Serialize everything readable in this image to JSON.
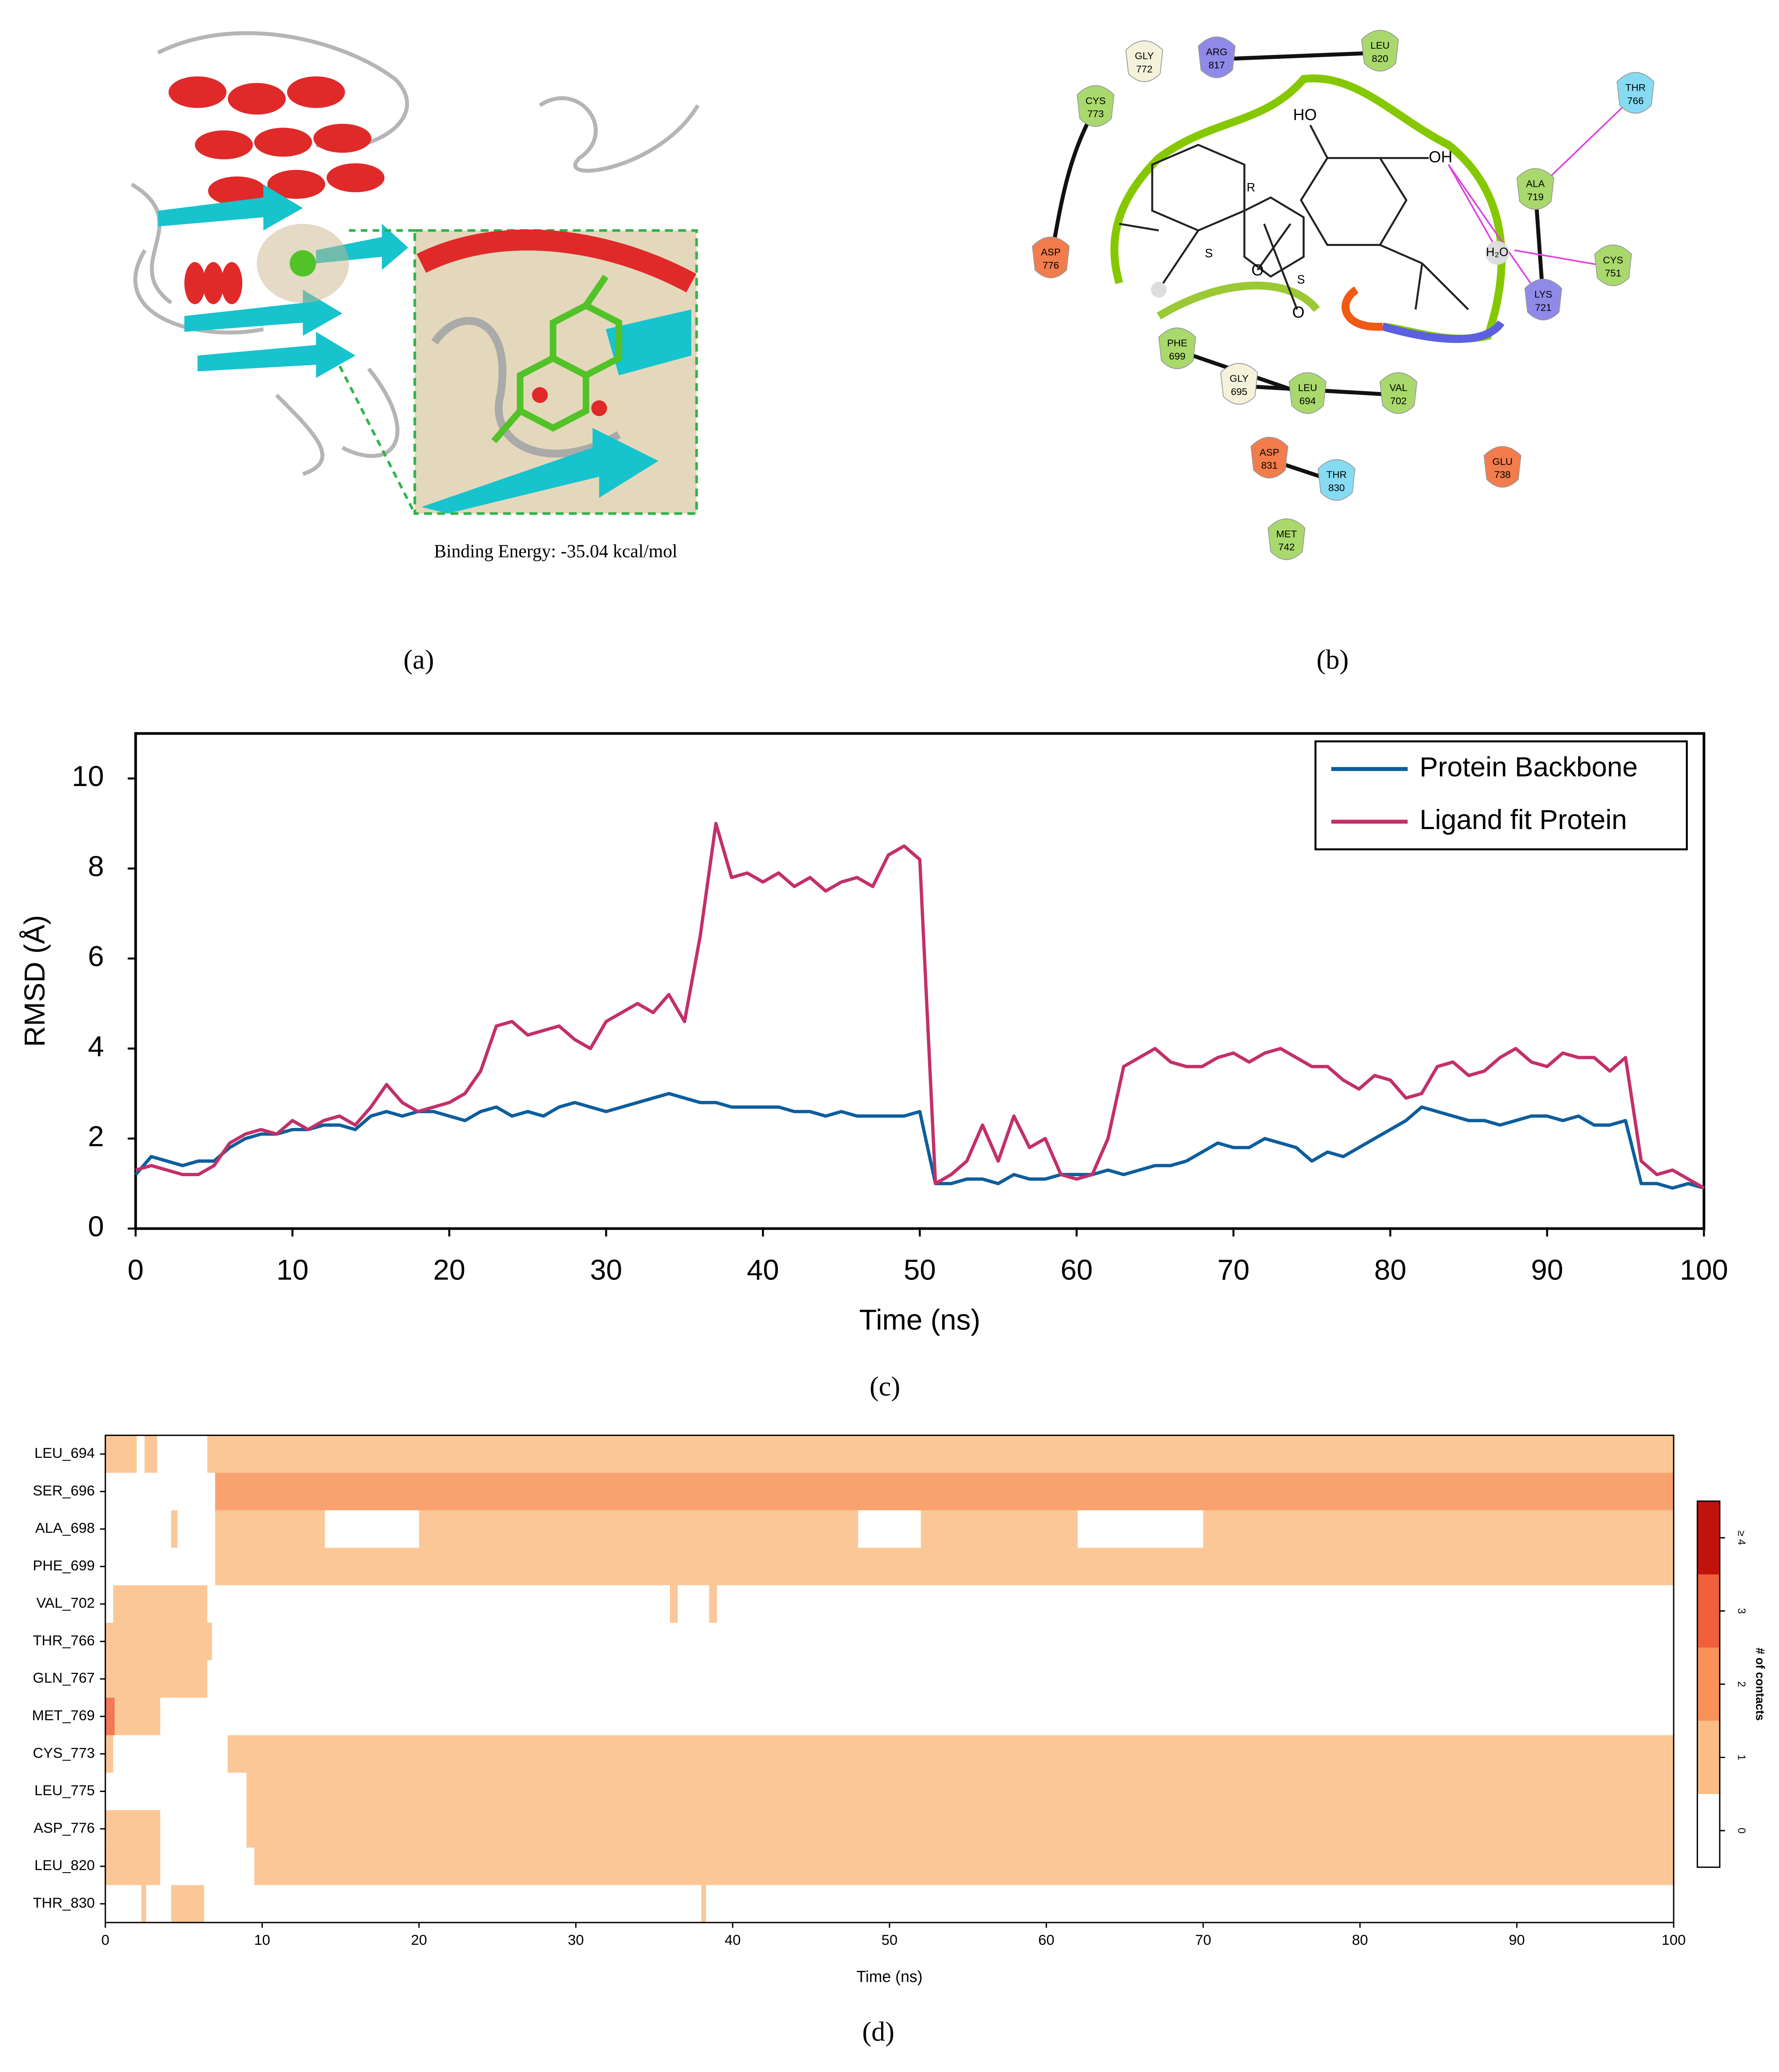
{
  "panels": {
    "a": {
      "label": "(a)",
      "caption": "Binding Energy: -35.04 kcal/mol"
    },
    "b": {
      "label": "(b)",
      "residues": [
        {
          "name": "GLY",
          "number": "772",
          "color": "#f5f2dc"
        },
        {
          "name": "ARG",
          "number": "817",
          "color": "#8f8ae8"
        },
        {
          "name": "LEU",
          "number": "820",
          "color": "#a9d96c"
        },
        {
          "name": "CYS",
          "number": "773",
          "color": "#a9d96c"
        },
        {
          "name": "THR",
          "number": "766",
          "color": "#86dbf2"
        },
        {
          "name": "ALA",
          "number": "719",
          "color": "#a9d96c"
        },
        {
          "name": "ASP",
          "number": "776",
          "color": "#f27c4c"
        },
        {
          "name": "CYS",
          "number": "751",
          "color": "#a9d96c"
        },
        {
          "name": "LYS",
          "number": "721",
          "color": "#8f8ae8"
        },
        {
          "name": "PHE",
          "number": "699",
          "color": "#a9d96c"
        },
        {
          "name": "GLY",
          "number": "695",
          "color": "#f5f2dc"
        },
        {
          "name": "LEU",
          "number": "694",
          "color": "#a9d96c"
        },
        {
          "name": "VAL",
          "number": "702",
          "color": "#a9d96c"
        },
        {
          "name": "ASP",
          "number": "831",
          "color": "#f27c4c"
        },
        {
          "name": "THR",
          "number": "830",
          "color": "#86dbf2"
        },
        {
          "name": "GLU",
          "number": "738",
          "color": "#f27c4c"
        },
        {
          "name": "MET",
          "number": "742",
          "color": "#a9d96c"
        }
      ],
      "ligand_labels": [
        "HO",
        "OH",
        "R",
        "S",
        "S",
        "O",
        "O",
        "H₂O"
      ]
    },
    "c": {
      "label": "(c)"
    },
    "d": {
      "label": "(d)"
    }
  },
  "chart_data": [
    {
      "type": "line",
      "xlabel": "Time (ns)",
      "ylabel": "RMSD (Å)",
      "xlim": [
        0,
        100
      ],
      "ylim": [
        0,
        11
      ],
      "xticks": [
        0,
        10,
        20,
        30,
        40,
        50,
        60,
        70,
        80,
        90,
        100
      ],
      "yticks": [
        0,
        2,
        4,
        6,
        8,
        10
      ],
      "legend": "upper right",
      "x": [
        0,
        1,
        2,
        3,
        4,
        5,
        6,
        7,
        8,
        9,
        10,
        11,
        12,
        13,
        14,
        15,
        16,
        17,
        18,
        19,
        20,
        21,
        22,
        23,
        24,
        25,
        26,
        27,
        28,
        29,
        30,
        31,
        32,
        33,
        34,
        35,
        36,
        37,
        38,
        39,
        40,
        41,
        42,
        43,
        44,
        45,
        46,
        47,
        48,
        49,
        50,
        51,
        52,
        53,
        54,
        55,
        56,
        57,
        58,
        59,
        60,
        61,
        62,
        63,
        64,
        65,
        66,
        67,
        68,
        69,
        70,
        71,
        72,
        73,
        74,
        75,
        76,
        77,
        78,
        79,
        80,
        81,
        82,
        83,
        84,
        85,
        86,
        87,
        88,
        89,
        90,
        91,
        92,
        93,
        94,
        95,
        96,
        97,
        98,
        99,
        100
      ],
      "series": [
        {
          "name": "Protein Backbone",
          "color": "#0d5e9c",
          "values": [
            1.2,
            1.6,
            1.5,
            1.4,
            1.5,
            1.5,
            1.8,
            2.0,
            2.1,
            2.1,
            2.2,
            2.2,
            2.3,
            2.3,
            2.2,
            2.5,
            2.6,
            2.5,
            2.6,
            2.6,
            2.5,
            2.4,
            2.6,
            2.7,
            2.5,
            2.6,
            2.5,
            2.7,
            2.8,
            2.7,
            2.6,
            2.7,
            2.8,
            2.9,
            3.0,
            2.9,
            2.8,
            2.8,
            2.7,
            2.7,
            2.7,
            2.7,
            2.6,
            2.6,
            2.5,
            2.6,
            2.5,
            2.5,
            2.5,
            2.5,
            2.6,
            1.0,
            1.0,
            1.1,
            1.1,
            1.0,
            1.2,
            1.1,
            1.1,
            1.2,
            1.2,
            1.2,
            1.3,
            1.2,
            1.3,
            1.4,
            1.4,
            1.5,
            1.7,
            1.9,
            1.8,
            1.8,
            2.0,
            1.9,
            1.8,
            1.5,
            1.7,
            1.6,
            1.8,
            2.0,
            2.2,
            2.4,
            2.7,
            2.6,
            2.5,
            2.4,
            2.4,
            2.3,
            2.4,
            2.5,
            2.5,
            2.4,
            2.5,
            2.3,
            2.3,
            2.4,
            1.0,
            1.0,
            0.9,
            1.0,
            0.9
          ]
        },
        {
          "name": "Ligand fit Protein",
          "color": "#c2306a",
          "values": [
            1.3,
            1.4,
            1.3,
            1.2,
            1.2,
            1.4,
            1.9,
            2.1,
            2.2,
            2.1,
            2.4,
            2.2,
            2.4,
            2.5,
            2.3,
            2.7,
            3.2,
            2.8,
            2.6,
            2.7,
            2.8,
            3.0,
            3.5,
            4.5,
            4.6,
            4.3,
            4.4,
            4.5,
            4.2,
            4.0,
            4.6,
            4.8,
            5.0,
            4.8,
            5.2,
            4.6,
            6.5,
            9.0,
            7.8,
            7.9,
            7.7,
            7.9,
            7.6,
            7.8,
            7.5,
            7.7,
            7.8,
            7.6,
            8.3,
            8.5,
            8.2,
            1.0,
            1.2,
            1.5,
            2.3,
            1.5,
            2.5,
            1.8,
            2.0,
            1.2,
            1.1,
            1.2,
            2.0,
            3.6,
            3.8,
            4.0,
            3.7,
            3.6,
            3.6,
            3.8,
            3.9,
            3.7,
            3.9,
            4.0,
            3.8,
            3.6,
            3.6,
            3.3,
            3.1,
            3.4,
            3.3,
            2.9,
            3.0,
            3.6,
            3.7,
            3.4,
            3.5,
            3.8,
            4.0,
            3.7,
            3.6,
            3.9,
            3.8,
            3.8,
            3.5,
            3.8,
            1.5,
            1.2,
            1.3,
            1.1,
            0.9
          ]
        }
      ]
    },
    {
      "type": "heatmap",
      "xlabel": "Time (ns)",
      "colorbar_label": "# of contacts",
      "xlim": [
        0,
        100
      ],
      "xticks": [
        0,
        10,
        20,
        30,
        40,
        50,
        60,
        70,
        80,
        90,
        100
      ],
      "colorscale": [
        "#ffffff",
        "#fbbd85",
        "#f99256",
        "#f0603a",
        "#c1120c"
      ],
      "colorbar_ticks": [
        0,
        1,
        2,
        3,
        {
          "value": 4,
          "label": "≥ 4"
        }
      ],
      "rows": [
        {
          "name": "LEU_694",
          "segments": [
            [
              0,
              2,
              1
            ],
            [
              2.5,
              3.3,
              1
            ],
            [
              6.5,
              100,
              1
            ]
          ]
        },
        {
          "name": "SER_696",
          "segments": [
            [
              7,
              100,
              2
            ]
          ]
        },
        {
          "name": "ALA_698",
          "segments": [
            [
              4.2,
              4.6,
              1
            ],
            [
              7,
              14,
              1
            ],
            [
              20,
              48,
              1
            ],
            [
              52,
              62,
              1
            ],
            [
              70,
              100,
              1
            ]
          ]
        },
        {
          "name": "PHE_699",
          "segments": [
            [
              7,
              100,
              1
            ]
          ]
        },
        {
          "name": "VAL_702",
          "segments": [
            [
              0.5,
              6.5,
              1
            ],
            [
              36,
              36.5,
              1
            ],
            [
              38.5,
              39,
              1
            ]
          ]
        },
        {
          "name": "THR_766",
          "segments": [
            [
              0,
              6.8,
              1
            ]
          ]
        },
        {
          "name": "GLN_767",
          "segments": [
            [
              0,
              6.5,
              1
            ]
          ]
        },
        {
          "name": "MET_769",
          "segments": [
            [
              0,
              0.6,
              3
            ],
            [
              0.6,
              3.5,
              1
            ]
          ]
        },
        {
          "name": "CYS_773",
          "segments": [
            [
              0,
              0.5,
              1
            ],
            [
              7.8,
              100,
              1
            ]
          ]
        },
        {
          "name": "LEU_775",
          "segments": [
            [
              9,
              100,
              1
            ]
          ]
        },
        {
          "name": "ASP_776",
          "segments": [
            [
              0,
              3.5,
              1
            ],
            [
              9,
              100,
              1
            ]
          ]
        },
        {
          "name": "LEU_820",
          "segments": [
            [
              0,
              3.5,
              1
            ],
            [
              9.5,
              100,
              1
            ]
          ]
        },
        {
          "name": "THR_830",
          "segments": [
            [
              2.3,
              2.6,
              1
            ],
            [
              4.2,
              6.3,
              1
            ],
            [
              38,
              38.3,
              1
            ]
          ]
        }
      ]
    }
  ]
}
